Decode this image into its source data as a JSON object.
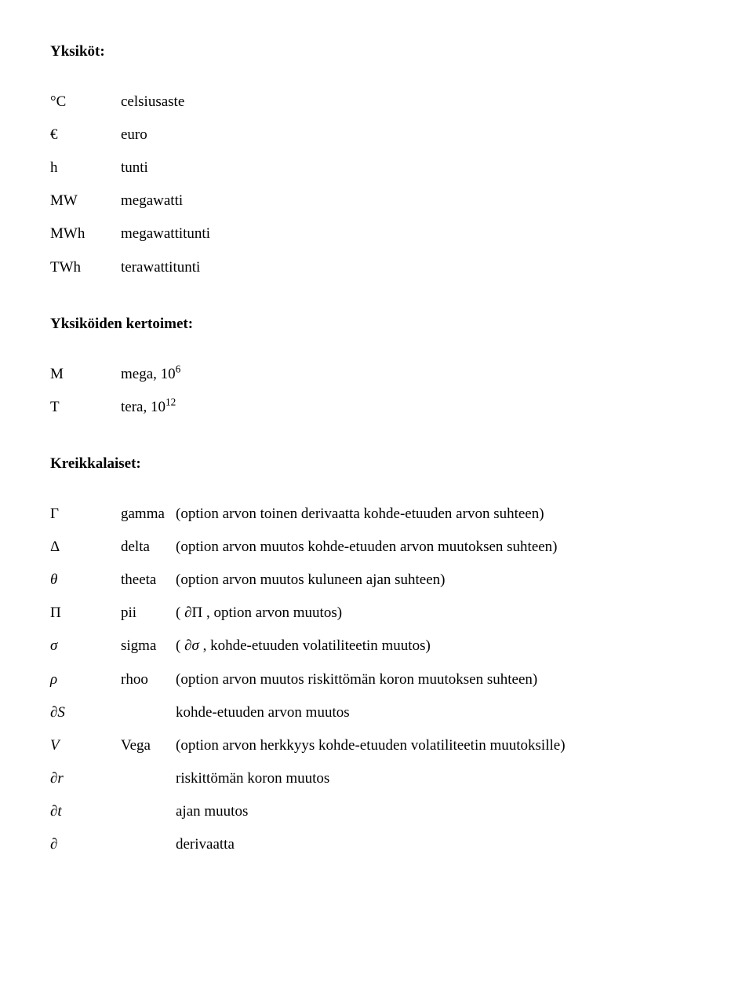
{
  "headings": {
    "units": "Yksiköt:",
    "multipliers": "Yksiköiden kertoimet:",
    "greek": "Kreikkalaiset:"
  },
  "units": [
    {
      "symbol": "°C",
      "name": "celsiusaste"
    },
    {
      "symbol": "€",
      "name": "euro"
    },
    {
      "symbol": "h",
      "name": "tunti"
    },
    {
      "symbol": "MW",
      "name": "megawatti"
    },
    {
      "symbol": "MWh",
      "name": "megawattitunti"
    },
    {
      "symbol": "TWh",
      "name": "terawattitunti"
    }
  ],
  "multipliers": [
    {
      "symbol": "M",
      "prefix": "mega, ",
      "base": "10",
      "exp": "6"
    },
    {
      "symbol": "T",
      "prefix": "tera, ",
      "base": "10",
      "exp": "12"
    }
  ],
  "greek": [
    {
      "symbol": "Γ",
      "upright": true,
      "label": "gamma",
      "desc": "(option arvon toinen derivaatta kohde-etuuden arvon suhteen)"
    },
    {
      "symbol": "Δ",
      "upright": true,
      "label": "delta",
      "desc": "(option arvon muutos kohde-etuuden arvon muutoksen suhteen)"
    },
    {
      "symbol": "θ",
      "upright": false,
      "label": "theeta",
      "desc": "(option arvon muutos kuluneen ajan suhteen)"
    },
    {
      "symbol": "Π",
      "upright": true,
      "label": "pii",
      "desc_prefix": "( ",
      "desc_partial": "∂",
      "desc_var": "Π",
      "desc_suffix": " , option arvon muutos)"
    },
    {
      "symbol": "σ",
      "upright": false,
      "label": "sigma",
      "desc_prefix": "( ",
      "desc_partial": "∂",
      "desc_var": "σ",
      "desc_suffix": " , kohde-etuuden volatiliteetin muutos)"
    },
    {
      "symbol": "ρ",
      "upright": false,
      "label": "rhoo",
      "desc": "(option arvon muutos riskittömän koron muutoksen suhteen)"
    },
    {
      "symbol_prefix": "∂",
      "symbol_var": "S",
      "upright": false,
      "label": "",
      "desc": "kohde-etuuden arvon muutos"
    },
    {
      "symbol": "V",
      "upright": false,
      "label": "Vega",
      "desc": "(option arvon herkkyys kohde-etuuden volatiliteetin muutoksille)"
    },
    {
      "symbol_prefix": "∂",
      "symbol_var": "r",
      "upright": false,
      "label": "",
      "desc": "riskittömän koron muutos"
    },
    {
      "symbol_prefix": "∂",
      "symbol_var": "t",
      "upright": false,
      "label": "",
      "desc": "ajan muutos"
    },
    {
      "symbol": "∂",
      "upright": true,
      "label": "",
      "desc": "derivaatta"
    }
  ],
  "colors": {
    "background": "#ffffff",
    "text": "#000000"
  },
  "typography": {
    "font_family": "Times New Roman",
    "font_size_pt": 14,
    "heading_weight": "bold"
  }
}
